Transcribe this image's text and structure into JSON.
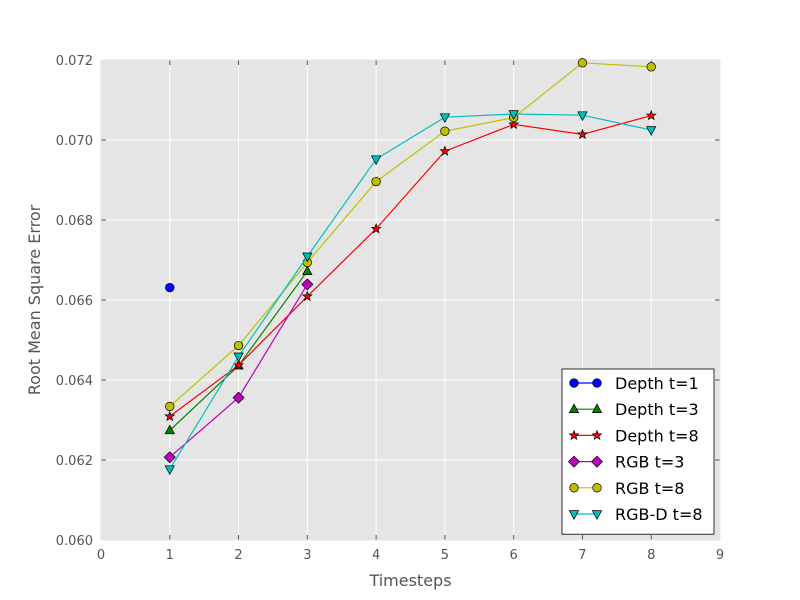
{
  "chart_data": {
    "type": "line",
    "title": "",
    "xlabel": "Timesteps",
    "ylabel": "Root Mean Square Error",
    "xlim": [
      0,
      9
    ],
    "ylim": [
      0.06,
      0.072
    ],
    "xticks": [
      "0",
      "1",
      "2",
      "3",
      "4",
      "5",
      "6",
      "7",
      "8",
      "9"
    ],
    "yticks": [
      "0.060",
      "0.062",
      "0.064",
      "0.066",
      "0.068",
      "0.070",
      "0.072"
    ],
    "grid": true,
    "legend_position": "lower-right",
    "series": [
      {
        "name": "Depth t=1",
        "color": "#0000ff",
        "marker": "circle",
        "points": [
          [
            1,
            0.06631
          ]
        ]
      },
      {
        "name": "Depth t=3",
        "color": "#008000",
        "marker": "triangle-up",
        "points": [
          [
            1,
            0.06274
          ],
          [
            2,
            0.06436
          ],
          [
            3,
            0.06672
          ]
        ]
      },
      {
        "name": "Depth t=8",
        "color": "#ff0000",
        "marker": "star",
        "points": [
          [
            1,
            0.06309
          ],
          [
            2,
            0.06437
          ],
          [
            3,
            0.06609
          ],
          [
            4,
            0.06778
          ],
          [
            5,
            0.06972
          ],
          [
            6,
            0.07039
          ],
          [
            7,
            0.07014
          ],
          [
            8,
            0.07061
          ]
        ]
      },
      {
        "name": "RGB t=3",
        "color": "#bf00bf",
        "marker": "diamond",
        "points": [
          [
            1,
            0.06207
          ],
          [
            2,
            0.06356
          ],
          [
            3,
            0.06639
          ]
        ]
      },
      {
        "name": "RGB t=8",
        "color": "#bfbf00",
        "marker": "circle",
        "points": [
          [
            1,
            0.06334
          ],
          [
            2,
            0.06486
          ],
          [
            3,
            0.06694
          ],
          [
            4,
            0.06896
          ],
          [
            5,
            0.07022
          ],
          [
            6,
            0.07056
          ],
          [
            7,
            0.07193
          ],
          [
            8,
            0.07183
          ]
        ]
      },
      {
        "name": "RGB-D t=8",
        "color": "#00bfbf",
        "marker": "triangle-down",
        "points": [
          [
            1,
            0.06177
          ],
          [
            2,
            0.06459
          ],
          [
            3,
            0.06709
          ],
          [
            4,
            0.06952
          ],
          [
            5,
            0.07057
          ],
          [
            6,
            0.07065
          ],
          [
            7,
            0.07062
          ],
          [
            8,
            0.07025
          ]
        ]
      }
    ]
  }
}
